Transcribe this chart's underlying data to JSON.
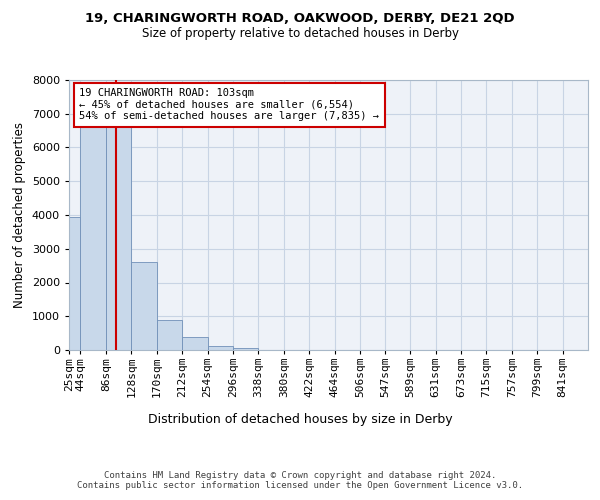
{
  "title1": "19, CHARINGWORTH ROAD, OAKWOOD, DERBY, DE21 2QD",
  "title2": "Size of property relative to detached houses in Derby",
  "xlabel": "Distribution of detached houses by size in Derby",
  "ylabel": "Number of detached properties",
  "bins": [
    "25sqm",
    "44sqm",
    "86sqm",
    "128sqm",
    "170sqm",
    "212sqm",
    "254sqm",
    "296sqm",
    "338sqm",
    "380sqm",
    "422sqm",
    "464sqm",
    "506sqm",
    "547sqm",
    "589sqm",
    "631sqm",
    "673sqm",
    "715sqm",
    "757sqm",
    "799sqm",
    "841sqm"
  ],
  "bin_edges": [
    25,
    44,
    86,
    128,
    170,
    212,
    254,
    296,
    338,
    380,
    422,
    464,
    506,
    547,
    589,
    631,
    673,
    715,
    757,
    799,
    841
  ],
  "values": [
    3950,
    6600,
    6600,
    2600,
    900,
    380,
    120,
    60,
    10,
    0,
    0,
    0,
    0,
    0,
    0,
    0,
    0,
    0,
    0,
    0
  ],
  "bar_color": "#c8d8ea",
  "bar_edge_color": "#7090b8",
  "grid_color": "#c8d4e4",
  "bg_color": "#eef2f8",
  "red_line_x": 103,
  "annotation_text": "19 CHARINGWORTH ROAD: 103sqm\n← 45% of detached houses are smaller (6,554)\n54% of semi-detached houses are larger (7,835) →",
  "annotation_box_color": "#ffffff",
  "annotation_border_color": "#cc0000",
  "footer": "Contains HM Land Registry data © Crown copyright and database right 2024.\nContains public sector information licensed under the Open Government Licence v3.0.",
  "ylim": [
    0,
    8000
  ],
  "yticks": [
    0,
    1000,
    2000,
    3000,
    4000,
    5000,
    6000,
    7000,
    8000
  ]
}
